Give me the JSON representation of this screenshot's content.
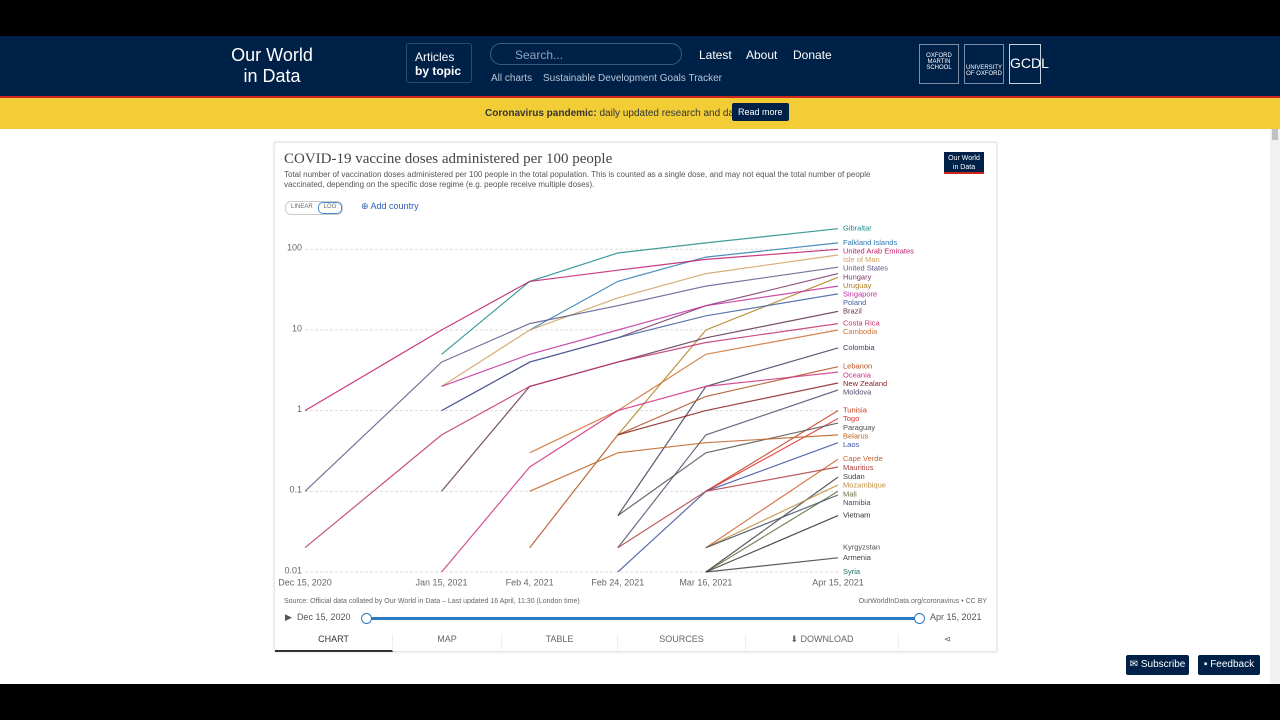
{
  "header": {
    "logo_line1": "Our World",
    "logo_line2": "in Data",
    "articles": "Articles",
    "by_topic": "by topic",
    "search_placeholder": "Search...",
    "nav": [
      "Latest",
      "About",
      "Donate"
    ],
    "subnav": [
      "All charts",
      "Sustainable Development Goals Tracker"
    ],
    "partners": [
      "OXFORD MARTIN SCHOOL",
      "UNIVERSITY OF OXFORD",
      "GCDL"
    ]
  },
  "banner": {
    "bold": "Coronavirus pandemic:",
    "text": "daily updated research and data.",
    "button": "Read more"
  },
  "controls": {
    "linear": "LINEAR",
    "log": "LOG",
    "add_country": "Add country",
    "badge_line1": "Our World",
    "badge_line2": "in Data"
  },
  "chart_data": {
    "type": "line",
    "title": "COVID-19 vaccine doses administered per 100 people",
    "subtitle": "Total number of vaccination doses administered per 100 people in the total population. This is counted as a single dose, and may not equal the total number of people vaccinated, depending on the specific dose regime (e.g. people receive multiple doses).",
    "source": "Source: Official data collated by Our World in Data – Last updated 16 April, 11:30 (London time)",
    "credit": "OurWorldInData.org/coronavirus • CC BY",
    "x": [
      "Dec 15, 2020",
      "Jan 15, 2021",
      "Feb 4, 2021",
      "Feb 24, 2021",
      "Mar 16, 2021",
      "Apr 15, 2021"
    ],
    "log_scale": true,
    "grid": true,
    "ylim": [
      0.01,
      200
    ],
    "yticks": [
      100,
      10,
      1,
      0.1,
      0.01
    ],
    "series": [
      {
        "name": "Gibraltar",
        "color": "#1f8a8a",
        "values": [
          null,
          5,
          40,
          90,
          120,
          180
        ]
      },
      {
        "name": "Falkland Islands",
        "color": "#2a7ab0",
        "values": [
          null,
          null,
          10,
          40,
          80,
          120
        ]
      },
      {
        "name": "United Arab Emirates",
        "color": "#c01a6a",
        "values": [
          1,
          10,
          40,
          55,
          75,
          100
        ]
      },
      {
        "name": "Isle of Man",
        "color": "#d0a060",
        "values": [
          null,
          2,
          10,
          25,
          50,
          85
        ]
      },
      {
        "name": "United States",
        "color": "#5a5a8a",
        "values": [
          0.1,
          4,
          12,
          20,
          35,
          60
        ]
      },
      {
        "name": "Hungary",
        "color": "#7a3a6a",
        "values": [
          null,
          1,
          4,
          8,
          20,
          50
        ]
      },
      {
        "name": "Uruguay",
        "color": "#b08020",
        "values": [
          null,
          null,
          null,
          0.5,
          10,
          45
        ]
      },
      {
        "name": "Singapore",
        "color": "#c030a0",
        "values": [
          null,
          2,
          5,
          10,
          20,
          35
        ]
      },
      {
        "name": "Poland",
        "color": "#4060a0",
        "values": [
          null,
          1,
          4,
          8,
          15,
          28
        ]
      },
      {
        "name": "Brazil",
        "color": "#603050",
        "values": [
          null,
          0.1,
          2,
          4,
          8,
          17
        ]
      },
      {
        "name": "Costa Rica",
        "color": "#c03070",
        "values": [
          0.02,
          0.5,
          2,
          4,
          7,
          12
        ]
      },
      {
        "name": "Cambodia",
        "color": "#d07030",
        "values": [
          null,
          null,
          0.3,
          1,
          5,
          10
        ]
      },
      {
        "name": "Colombia",
        "color": "#404060",
        "values": [
          null,
          null,
          null,
          0.05,
          2,
          6
        ]
      },
      {
        "name": "Lebanon",
        "color": "#b05020",
        "values": [
          null,
          null,
          0.02,
          0.5,
          1.5,
          3.5
        ]
      },
      {
        "name": "Oceania",
        "color": "#d03080",
        "values": [
          null,
          0.01,
          0.2,
          1,
          2,
          3
        ]
      },
      {
        "name": "New Zealand",
        "color": "#8a2020",
        "values": [
          null,
          null,
          null,
          0.5,
          1,
          2.2
        ]
      },
      {
        "name": "Moldova",
        "color": "#505070",
        "values": [
          null,
          null,
          null,
          0.02,
          0.5,
          1.8
        ]
      },
      {
        "name": "Tunisia",
        "color": "#c04020",
        "values": [
          null,
          null,
          null,
          null,
          0.1,
          1
        ]
      },
      {
        "name": "Togo",
        "color": "#e03030",
        "values": [
          null,
          null,
          null,
          null,
          0.1,
          0.8
        ]
      },
      {
        "name": "Paraguay",
        "color": "#505050",
        "values": [
          null,
          null,
          null,
          0.05,
          0.3,
          0.7
        ]
      },
      {
        "name": "Belarus",
        "color": "#c06020",
        "values": [
          null,
          null,
          0.1,
          0.3,
          0.4,
          0.5
        ]
      },
      {
        "name": "Laos",
        "color": "#4050a0",
        "values": [
          null,
          null,
          null,
          0.01,
          0.1,
          0.4
        ]
      },
      {
        "name": "Cape Verde",
        "color": "#d06030",
        "values": [
          null,
          null,
          null,
          null,
          0.02,
          0.25
        ]
      },
      {
        "name": "Mauritius",
        "color": "#b04040",
        "values": [
          null,
          null,
          null,
          0.02,
          0.1,
          0.2
        ]
      },
      {
        "name": "Sudan",
        "color": "#404040",
        "values": [
          null,
          null,
          null,
          null,
          0.01,
          0.15
        ]
      },
      {
        "name": "Mozambique",
        "color": "#c09040",
        "values": [
          null,
          null,
          null,
          null,
          0.02,
          0.12
        ]
      },
      {
        "name": "Mali",
        "color": "#607040",
        "values": [
          null,
          null,
          null,
          null,
          0.01,
          0.1
        ]
      },
      {
        "name": "Namibia",
        "color": "#405060",
        "values": [
          null,
          null,
          null,
          null,
          0.02,
          0.09
        ]
      },
      {
        "name": "Vietnam",
        "color": "#303030",
        "values": [
          null,
          null,
          null,
          null,
          0.01,
          0.05
        ]
      },
      {
        "name": "Kyrgyzstan",
        "color": "#505050",
        "values": [
          null,
          null,
          null,
          null,
          null,
          0.02
        ]
      },
      {
        "name": "Armenia",
        "color": "#404040",
        "values": [
          null,
          null,
          null,
          null,
          0.01,
          0.015
        ]
      },
      {
        "name": "Syria",
        "color": "#207060",
        "values": [
          null,
          null,
          null,
          null,
          null,
          0.01
        ]
      }
    ]
  },
  "tabs": [
    "CHART",
    "MAP",
    "TABLE",
    "SOURCES",
    "DOWNLOAD"
  ],
  "footer_buttons": [
    "Subscribe",
    "Feedback"
  ]
}
